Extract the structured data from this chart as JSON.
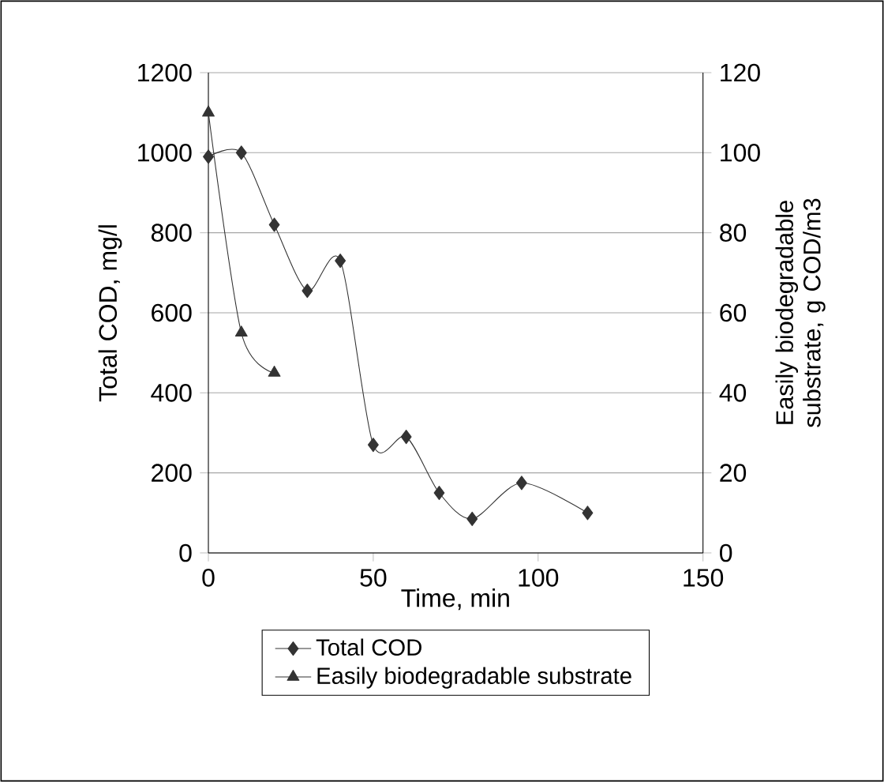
{
  "chart_data": {
    "type": "line",
    "xlabel": "Time, min",
    "ylabel": "Total COD, mg/l",
    "y2label": "Easily biodegradable substrate, g COD/m3",
    "xlim": [
      0,
      150
    ],
    "xticks": [
      0,
      50,
      100,
      150
    ],
    "ylim": [
      0,
      1200
    ],
    "yticks": [
      0,
      200,
      400,
      600,
      800,
      1000,
      1200
    ],
    "y2lim": [
      0,
      120
    ],
    "y2ticks": [
      0,
      20,
      40,
      60,
      80,
      100,
      120
    ],
    "grid": "y",
    "legend": "bottom",
    "series": [
      {
        "name": "Total COD",
        "color": "#333333",
        "marker": "diamond",
        "x": [
          0,
          10,
          20,
          30,
          40,
          50,
          60,
          70,
          80,
          95,
          115
        ],
        "values": [
          990,
          1000,
          820,
          655,
          730,
          270,
          290,
          150,
          85,
          175,
          100
        ]
      },
      {
        "name": "Easily biodegradable substrate",
        "color": "#333333",
        "marker": "triangle",
        "axis": "y2",
        "x": [
          0,
          10,
          20
        ],
        "values": [
          110,
          55,
          45
        ]
      }
    ]
  }
}
